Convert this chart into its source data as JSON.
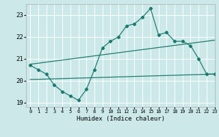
{
  "title": "",
  "xlabel": "Humidex (Indice chaleur)",
  "ylabel": "",
  "bg_color": "#cce8e8",
  "grid_color": "#ffffff",
  "line_color": "#1a7a6e",
  "xlim": [
    -0.5,
    23
  ],
  "ylim": [
    18.8,
    23.5
  ],
  "yticks": [
    19,
    20,
    21,
    22,
    23
  ],
  "xticks": [
    0,
    1,
    2,
    3,
    4,
    5,
    6,
    7,
    8,
    9,
    10,
    11,
    12,
    13,
    14,
    15,
    16,
    17,
    18,
    19,
    20,
    21,
    22,
    23
  ],
  "main_line_x": [
    0,
    1,
    2,
    3,
    4,
    5,
    6,
    7,
    8,
    9,
    10,
    11,
    12,
    13,
    14,
    15,
    16,
    17,
    18,
    19,
    20,
    21,
    22,
    23
  ],
  "main_line_y": [
    20.7,
    20.5,
    20.3,
    19.8,
    19.5,
    19.3,
    19.1,
    19.6,
    20.5,
    21.5,
    21.8,
    22.0,
    22.5,
    22.6,
    22.9,
    23.3,
    22.1,
    22.2,
    21.8,
    21.8,
    21.6,
    21.0,
    20.3,
    20.3
  ],
  "lower_line_x": [
    0,
    23
  ],
  "lower_line_y": [
    20.05,
    20.3
  ],
  "upper_line_x": [
    0,
    23
  ],
  "upper_line_y": [
    20.75,
    21.85
  ]
}
